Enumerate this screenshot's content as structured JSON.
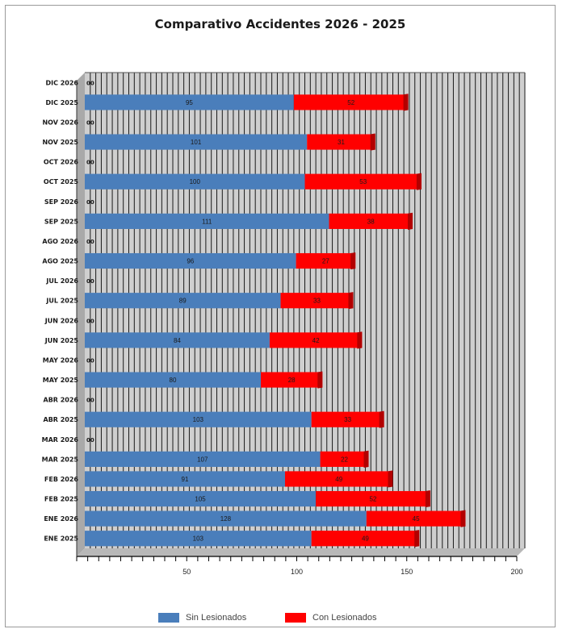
{
  "chart_data": {
    "type": "bar",
    "orientation": "horizontal",
    "stacked": true,
    "title": "Comparativo Accidentes 2026 - 2025",
    "categories": [
      "DIC 2026",
      "DIC 2025",
      "NOV 2026",
      "NOV 2025",
      "OCT 2026",
      "OCT 2025",
      "SEP 2026",
      "SEP 2025",
      "AGO 2026",
      "AGO 2025",
      "JUL 2026",
      "JUL 2025",
      "JUN 2026",
      "JUN 2025",
      "MAY 2026",
      "MAY 2025",
      "ABR 2026",
      "ABR 2025",
      "MAR 2026",
      "MAR 2025",
      "FEB 2026",
      "FEB 2025",
      "ENE 2026",
      "ENE 2025"
    ],
    "series": [
      {
        "name": "Sin Lesionados",
        "color": "#4a7ebb",
        "values": [
          0,
          95,
          0,
          101,
          0,
          100,
          0,
          111,
          0,
          96,
          0,
          89,
          0,
          84,
          0,
          80,
          0,
          103,
          0,
          107,
          91,
          105,
          128,
          103
        ]
      },
      {
        "name": "Con Lesionados",
        "color": "#ff0000",
        "values": [
          0,
          52,
          0,
          31,
          0,
          53,
          0,
          38,
          0,
          27,
          0,
          33,
          0,
          42,
          0,
          28,
          0,
          33,
          0,
          22,
          49,
          52,
          45,
          49
        ]
      }
    ],
    "data_labels": [
      [
        "",
        "95",
        "",
        "101",
        "",
        "100",
        "",
        "111",
        "",
        "96",
        "",
        "89",
        "",
        "84",
        "",
        "80",
        "",
        "103",
        "",
        "107",
        "91",
        "105",
        "128",
        "103"
      ],
      [
        "",
        "52",
        "",
        "31",
        "",
        "53",
        "",
        "38",
        "",
        "27",
        "",
        "33",
        "",
        "42",
        "",
        "28",
        "",
        "33",
        "",
        "22",
        "49",
        "52",
        "45",
        "49"
      ]
    ],
    "zero_labels": [
      "00",
      "00",
      "00",
      "00",
      "00",
      "00",
      "00",
      "00",
      "00",
      "00",
      "00"
    ],
    "x_ticks": [
      "50",
      "100",
      "150",
      "200"
    ],
    "xlim": [
      0,
      200
    ],
    "grid": "vertical",
    "three_d": true,
    "legend_position": "bottom"
  },
  "legend": {
    "items": [
      "Sin Lesionados",
      "Con Lesionados"
    ]
  }
}
